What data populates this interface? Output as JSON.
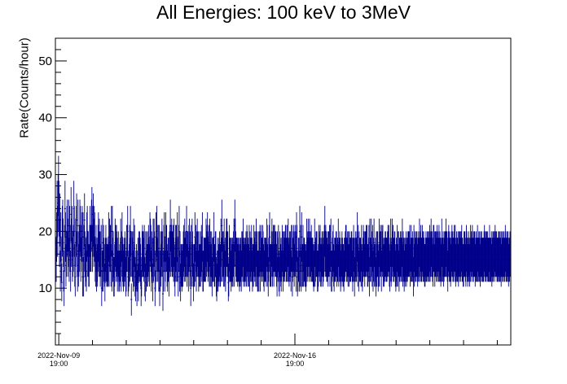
{
  "chart_data": {
    "type": "scatter",
    "title": "All Energies:  100 keV to 3MeV",
    "xlabel": "",
    "ylabel": "Rate(Counts/hour)",
    "ylim": [
      0,
      54
    ],
    "yticks": [
      10,
      20,
      30,
      40,
      50
    ],
    "xlim_days": [
      -0.1,
      13.4
    ],
    "xtick_labels": [
      {
        "date": "2022-Nov-09",
        "time": "19:00"
      },
      {
        "date": "2022-Nov-16",
        "time": "19:00"
      }
    ],
    "x_time_range": "2022-Nov-09 ~16:30 to 2022-Nov-23 ~03:00 (hourly bins)",
    "series": [
      {
        "color": "#00008b",
        "style": "points-with-vertical-error-bars",
        "values": [
          15,
          19,
          24,
          20,
          25,
          28,
          24,
          18,
          22,
          13,
          19,
          15,
          11,
          20,
          21,
          18,
          13,
          10,
          17,
          24,
          19,
          14,
          16,
          20,
          21,
          16,
          18,
          21,
          15,
          20,
          17,
          13,
          23,
          18,
          20,
          15,
          16,
          17,
          24,
          20,
          14,
          12,
          18,
          20,
          22,
          16,
          13,
          21,
          14,
          16,
          17,
          21,
          20,
          15,
          17,
          19,
          20,
          12,
          19,
          12,
          17,
          22,
          16,
          14,
          15,
          13,
          19,
          20,
          16,
          16,
          14,
          14,
          17,
          20,
          17,
          17,
          21,
          23,
          17,
          20,
          22,
          18,
          20,
          19,
          15,
          14,
          17,
          13,
          15,
          14,
          17,
          19,
          16,
          18,
          16,
          14,
          16,
          17,
          10,
          13,
          18,
          13,
          17,
          15,
          14,
          11,
          15,
          17,
          15,
          14,
          14,
          15,
          14,
          19,
          14,
          18,
          17,
          17,
          14,
          20,
          13,
          20,
          15,
          16,
          12,
          12,
          14,
          18,
          17,
          15,
          17,
          16,
          13,
          15,
          16,
          13,
          13,
          14,
          15,
          18,
          13,
          16,
          19,
          15,
          14,
          13,
          15,
          14,
          16,
          15,
          12,
          13,
          17,
          17,
          20,
          12,
          13,
          14,
          17,
          15,
          20,
          16,
          8,
          16,
          15,
          16,
          13,
          18,
          14,
          17,
          12,
          11,
          13,
          14,
          10,
          13,
          15,
          11,
          16,
          15,
          16,
          15,
          14,
          10,
          12,
          16,
          17,
          16,
          16,
          15,
          17,
          12,
          11,
          16,
          13,
          16,
          14,
          14,
          16,
          17,
          15,
          14,
          19,
          18,
          17,
          13,
          16,
          15,
          11,
          18,
          15,
          18,
          16,
          10,
          13,
          19,
          15,
          20,
          17,
          15,
          17,
          13,
          17,
          10,
          13,
          16,
          14,
          16,
          18,
          16,
          9,
          13,
          17,
          19,
          13,
          15,
          19,
          17,
          17,
          14,
          13,
          15,
          15,
          12,
          16,
          17,
          21,
          16,
          17,
          18,
          16,
          16,
          17,
          15,
          18,
          14,
          12,
          17,
          15,
          17,
          15,
          19,
          15,
          12,
          17,
          20,
          13,
          16,
          11,
          14,
          14,
          13,
          14,
          14,
          16,
          17,
          15,
          18,
          15,
          16,
          16,
          20,
          14,
          16,
          16,
          13,
          17,
          18,
          14,
          16,
          10,
          17,
          14,
          18,
          16,
          14,
          11,
          14,
          14,
          19,
          15,
          17,
          13,
          16,
          18,
          16,
          16,
          13,
          14,
          16,
          14,
          14,
          16,
          17,
          15,
          19,
          13,
          13,
          15,
          15,
          15,
          15,
          15,
          18,
          16,
          17,
          19,
          15,
          16,
          17,
          14,
          18,
          14,
          16,
          14,
          16,
          12,
          15,
          15,
          15,
          19,
          14,
          14,
          16,
          16,
          12,
          11,
          13,
          15,
          13,
          14,
          15,
          16,
          14,
          14,
          18,
          15,
          21,
          15,
          16,
          16,
          14,
          18,
          14,
          15,
          13,
          16,
          18,
          18,
          16,
          16,
          11,
          12,
          17,
          15,
          15,
          15,
          13,
          15,
          14,
          15,
          14,
          16,
          18,
          14,
          21,
          18,
          16,
          15,
          15,
          15,
          14,
          15,
          15,
          14,
          13,
          15,
          14,
          15,
          13,
          16,
          16,
          15,
          18,
          14,
          15,
          15,
          14,
          15,
          16,
          14,
          17,
          16,
          14,
          15,
          14,
          17,
          13,
          16,
          15,
          15,
          17,
          15,
          13,
          14,
          14,
          17,
          16,
          15,
          16,
          14,
          18,
          14,
          16,
          13,
          13,
          16,
          13,
          16,
          17,
          13,
          16,
          17,
          15,
          15,
          17,
          16,
          14,
          13,
          15,
          15,
          15,
          15,
          14,
          18,
          17,
          14,
          12,
          15,
          17,
          19,
          14,
          14,
          14,
          16,
          18,
          14,
          16,
          17,
          14,
          17,
          17,
          16,
          16,
          16,
          14,
          12,
          16,
          15,
          17,
          13,
          12,
          16,
          15,
          14,
          13,
          15,
          17,
          16,
          13,
          16,
          15,
          16,
          15,
          17,
          17,
          15,
          15,
          17,
          15,
          18,
          15,
          14,
          16,
          15,
          16,
          13,
          17,
          17,
          12,
          15,
          16,
          17,
          14,
          16,
          17,
          16,
          13,
          19,
          17,
          12,
          13,
          15,
          15,
          13,
          20,
          14,
          17,
          13,
          19,
          14,
          14,
          17,
          14,
          15,
          15,
          14,
          14,
          13,
          14,
          18,
          15,
          16,
          18,
          16,
          15,
          18,
          16,
          16,
          15,
          17,
          15,
          15,
          15,
          14,
          13,
          14,
          18,
          14,
          15,
          16,
          16,
          16,
          13,
          13,
          14,
          17,
          16,
          15,
          17,
          14,
          15,
          14,
          16,
          16,
          14,
          15,
          16,
          17,
          20,
          16,
          17,
          16,
          15,
          15,
          16,
          14,
          16,
          16,
          17,
          14,
          17,
          18,
          13,
          13,
          15,
          16,
          17,
          14,
          13,
          15,
          15,
          15,
          16,
          16,
          14,
          15,
          15,
          18,
          14,
          15,
          16,
          15,
          13,
          14,
          15,
          16,
          15,
          14,
          14,
          13,
          15,
          15,
          16,
          17,
          17,
          15,
          15,
          16,
          14,
          16,
          14,
          16,
          15,
          15,
          15,
          16,
          16,
          15,
          13,
          15,
          17,
          15,
          12,
          15,
          16,
          15,
          15,
          16,
          19,
          14,
          17,
          13,
          16,
          15,
          15,
          15,
          14,
          17,
          14,
          13,
          15,
          17,
          16,
          16,
          14,
          16,
          16,
          17,
          16,
          17,
          14,
          14,
          15,
          17,
          12,
          18,
          15,
          15,
          18,
          16,
          14,
          17,
          13,
          15,
          18,
          14,
          14,
          15,
          12,
          16,
          14,
          16,
          16,
          13,
          14,
          18,
          14,
          16,
          17,
          16,
          13,
          17,
          16,
          17,
          14,
          15,
          14,
          15,
          16,
          16,
          15,
          15,
          15,
          16,
          17,
          16,
          17,
          14,
          13,
          15,
          18,
          14,
          15,
          18,
          16,
          17,
          15,
          15,
          16,
          16,
          14,
          13,
          15,
          14,
          17,
          14,
          16,
          16,
          13,
          15,
          15,
          16,
          16,
          15,
          15,
          18,
          14,
          16,
          15,
          13,
          15,
          14,
          15,
          16,
          14,
          15,
          15,
          16,
          16,
          16,
          16,
          17,
          14,
          15,
          17,
          15,
          15,
          16,
          15,
          12,
          17,
          14,
          16,
          15,
          15,
          16,
          16,
          15,
          14,
          16,
          15,
          15,
          18,
          16,
          15,
          17,
          15,
          15,
          17,
          16,
          15,
          16,
          15,
          14,
          14,
          15,
          16,
          15,
          15,
          16,
          16,
          15,
          16,
          15,
          17,
          15,
          16,
          18,
          16,
          16,
          15,
          14,
          17,
          17,
          16,
          14,
          16,
          16,
          15,
          16,
          17,
          15,
          16,
          15,
          17,
          15,
          16,
          15,
          14,
          15,
          18,
          15,
          15,
          16,
          14,
          15,
          16,
          16,
          16,
          18,
          16,
          16,
          15,
          13,
          16,
          17,
          15,
          16,
          15,
          14,
          15,
          16,
          17,
          16,
          15,
          15,
          16,
          17,
          15,
          17,
          14,
          15,
          16,
          15,
          15,
          16,
          14,
          16,
          15,
          16,
          16,
          15,
          16,
          17,
          15,
          15,
          14,
          14,
          16,
          16,
          16,
          15,
          14,
          17,
          16,
          15,
          14,
          15,
          16,
          15,
          14,
          15,
          17,
          15,
          16,
          16,
          17,
          15,
          15,
          16,
          16,
          16,
          14,
          15,
          16,
          15,
          15,
          17,
          15,
          15,
          16,
          15,
          16,
          14,
          15,
          16,
          16,
          15,
          15,
          15,
          15,
          16,
          17,
          15,
          16,
          15,
          16,
          16,
          15,
          16,
          15,
          15,
          15,
          17,
          15,
          15,
          15,
          16,
          14,
          15,
          16,
          15,
          16,
          16,
          15,
          17,
          16,
          16,
          16,
          15,
          15,
          15,
          16,
          15,
          16,
          15,
          16,
          15,
          14,
          16,
          16,
          15,
          15,
          16,
          16,
          15,
          15,
          17,
          16,
          15,
          15,
          16,
          15,
          16,
          14,
          15,
          15,
          16
        ]
      }
    ]
  }
}
